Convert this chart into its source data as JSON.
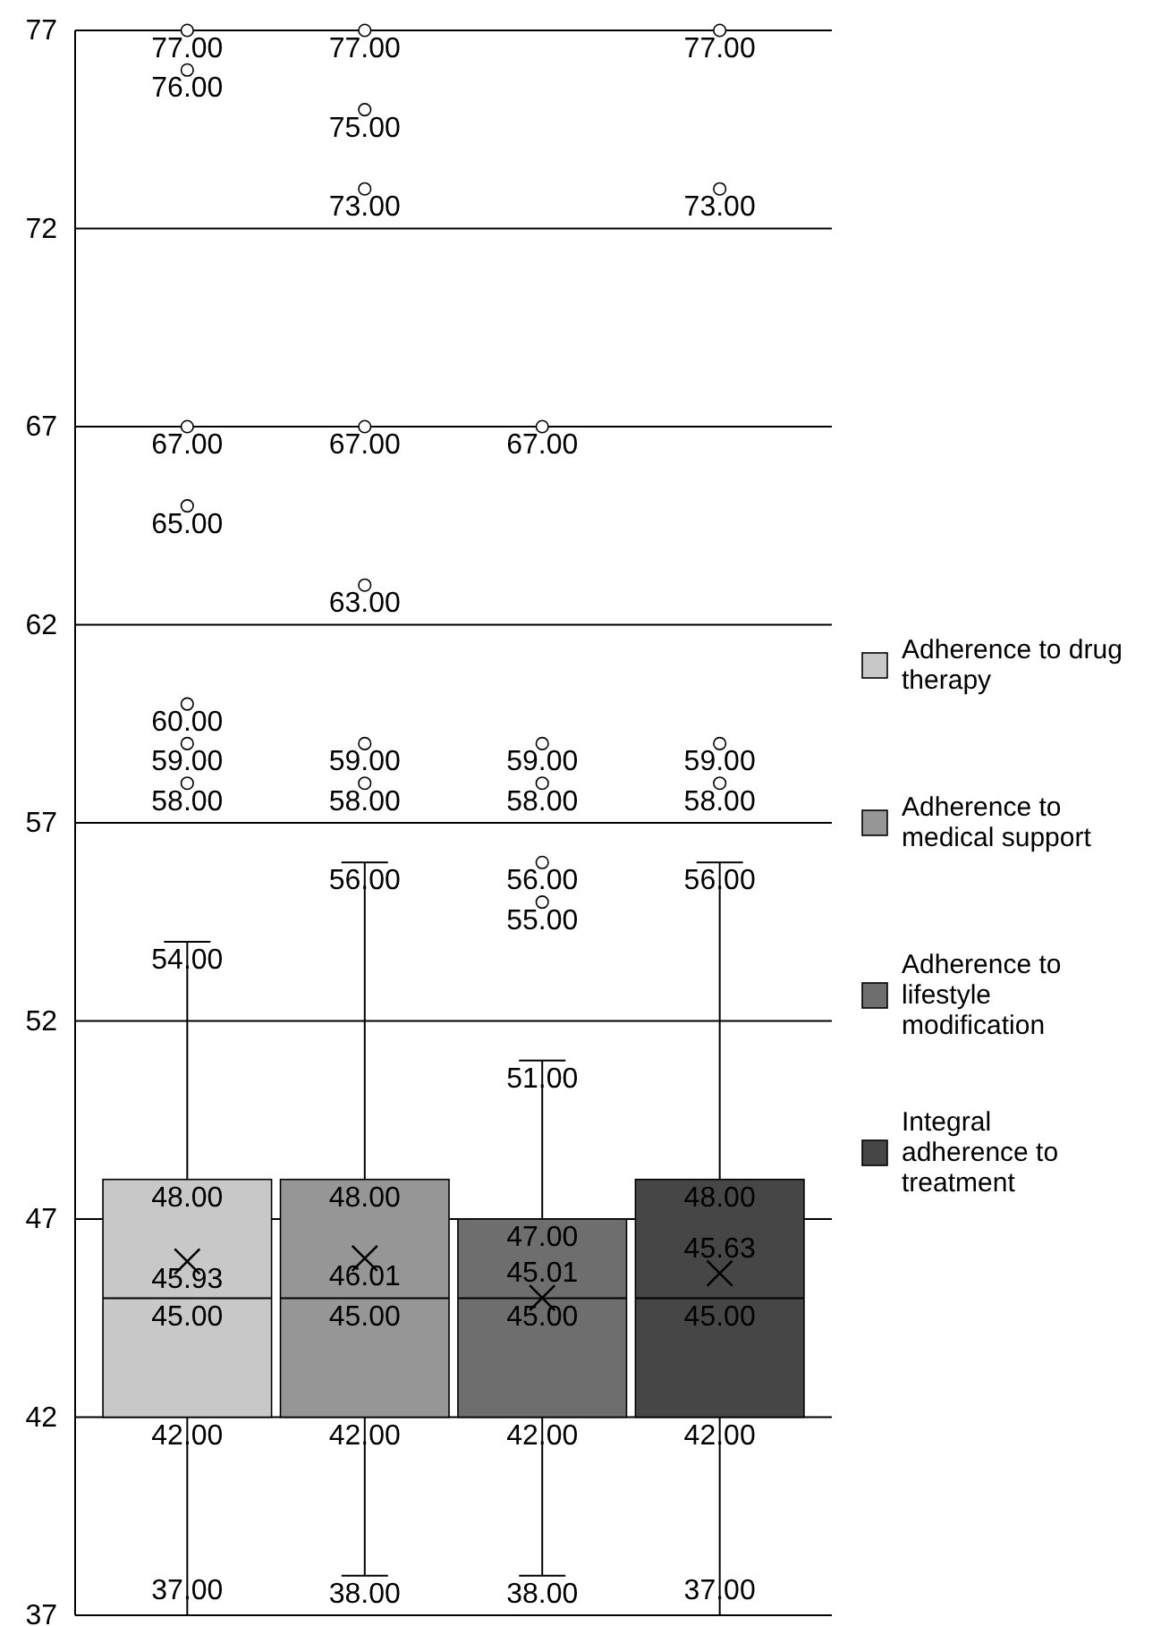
{
  "chart_data": {
    "type": "box",
    "categories": [
      null
    ],
    "series": [
      {
        "name": "Adherence to drug therapy",
        "color": "#c8c8c8",
        "boxes": [
          {
            "low": 37,
            "q1": 42,
            "median": 45,
            "q3": 48,
            "high": 54,
            "mean": 45.93,
            "outliers": [
              58,
              59,
              60,
              65,
              67,
              76,
              77
            ]
          }
        ],
        "value_labels": [
          [
            "37.00",
            "42.00",
            "45.00",
            "48.00",
            "54.00",
            "45.93",
            "58.00",
            "59.00",
            "60.00",
            "65.00",
            "67.00",
            "76.00",
            "77.00"
          ]
        ]
      },
      {
        "name": "Adherence to medical support",
        "color": "#969696",
        "boxes": [
          {
            "low": 38,
            "q1": 42,
            "median": 45,
            "q3": 48,
            "high": 56,
            "mean": 46.01,
            "outliers": [
              58,
              59,
              63,
              67,
              73,
              75,
              77
            ]
          }
        ],
        "value_labels": [
          [
            "38.00",
            "42.00",
            "45.00",
            "48.00",
            "56.00",
            "46.01",
            "58.00",
            "59.00",
            "63.00",
            "67.00",
            "73.00",
            "75.00",
            "77.00"
          ]
        ]
      },
      {
        "name": "Adherence to lifestyle modification",
        "color": "#6e6e6e",
        "boxes": [
          {
            "low": 38,
            "q1": 42,
            "median": 45,
            "q3": 47,
            "high": 51,
            "mean": 45.01,
            "outliers": [
              55,
              56,
              58,
              59,
              67
            ]
          }
        ],
        "value_labels": [
          [
            "38.00",
            "42.00",
            "45.00",
            "47.00",
            "51.00",
            "45.01",
            "55.00",
            "56.00",
            "58.00",
            "59.00",
            "67.00"
          ]
        ]
      },
      {
        "name": "Integral adherence to treatment",
        "color": "#464646",
        "boxes": [
          {
            "low": 37,
            "q1": 42,
            "median": 45,
            "q3": 48,
            "high": 56,
            "mean": 45.63,
            "outliers": [
              58,
              59,
              73,
              77
            ]
          }
        ],
        "value_labels": [
          [
            "37.00",
            "42.00",
            "45.00",
            "48.00",
            "56.00",
            "45.63",
            "58.00",
            "59.00",
            "73.00",
            "77.00"
          ]
        ]
      }
    ],
    "ylim": [
      37,
      77
    ],
    "yticks": [
      37,
      42,
      47,
      52,
      57,
      62,
      67,
      72,
      77
    ],
    "grid": "y",
    "legend": "right",
    "marker": "circle"
  }
}
